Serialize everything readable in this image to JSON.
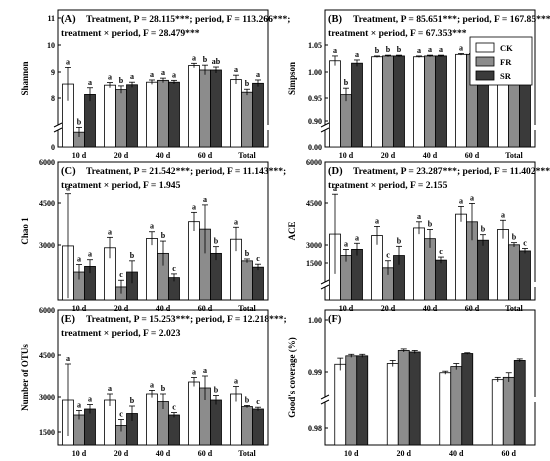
{
  "legend": [
    {
      "name": "CK",
      "color": "#ffffff"
    },
    {
      "name": "FR",
      "color": "#8c8c8c"
    },
    {
      "name": "SR",
      "color": "#3a3a3a"
    }
  ],
  "chart_data": [
    {
      "type": "bar",
      "panel": "(A)",
      "ylabel": "Shannon",
      "stat_line1": "Treatment, P = 28.115***; period, F = 113.266***;",
      "stat_line2": "treatment × period, F = 28.479***",
      "categories": [
        "10 d",
        "20 d",
        "40 d",
        "60 d",
        "Total"
      ],
      "yticks": [
        "0",
        "8",
        "9",
        "10",
        "11"
      ],
      "ylim": [
        7.3,
        11
      ],
      "axis_break": true,
      "series": [
        {
          "name": "CK",
          "values": [
            9.0,
            8.97,
            9.05,
            9.5,
            9.12
          ],
          "errors": [
            0.45,
            0.07,
            0.06,
            0.06,
            0.12
          ],
          "labels": [
            "a",
            "a",
            "a",
            "a",
            "a"
          ]
        },
        {
          "name": "FR",
          "values": [
            7.7,
            8.85,
            9.1,
            9.38,
            8.78
          ],
          "errors": [
            0.13,
            0.1,
            0.06,
            0.13,
            0.08
          ],
          "labels": [
            "b",
            "b",
            "a",
            "b",
            "b"
          ]
        },
        {
          "name": "SR",
          "values": [
            8.72,
            8.98,
            9.05,
            9.38,
            9.02
          ],
          "errors": [
            0.18,
            0.07,
            0.05,
            0.08,
            0.09
          ],
          "labels": [
            "a",
            "a",
            "a",
            "ab",
            "a"
          ]
        }
      ]
    },
    {
      "type": "bar",
      "panel": "(B)",
      "ylabel": "Simpson",
      "stat_line1": "Treatment, P = 85.651***; period, F = 167.85***;",
      "stat_line2": "treatment × period, F = 67.353***",
      "categories": [
        "10 d",
        "20 d",
        "40 d",
        "60 d",
        "Total"
      ],
      "yticks": [
        "0.00",
        "0.90",
        "0.95",
        "1.00",
        "1.05"
      ],
      "ylim": [
        0.88,
        1.05
      ],
      "axis_break": true,
      "series": [
        {
          "name": "CK",
          "values": [
            0.987,
            0.992,
            0.992,
            0.995,
            0.991
          ],
          "errors": [
            0.006,
            0.001,
            0.001,
            0.001,
            0.003
          ],
          "labels": [
            "a",
            "b",
            "a",
            "a",
            "a"
          ]
        },
        {
          "name": "FR",
          "values": [
            0.945,
            0.993,
            0.993,
            0.995,
            0.983
          ],
          "errors": [
            0.008,
            0.001,
            0.001,
            0.001,
            0.004
          ],
          "labels": [
            "b",
            "b",
            "a",
            "a",
            "b"
          ]
        },
        {
          "name": "SR",
          "values": [
            0.984,
            0.993,
            0.993,
            0.995,
            0.991
          ],
          "errors": [
            0.004,
            0.001,
            0.001,
            0.001,
            0.002
          ],
          "labels": [
            "a",
            "b",
            "a",
            "a",
            "a"
          ]
        }
      ]
    },
    {
      "type": "bar",
      "panel": "(C)",
      "ylabel": "Chao 1",
      "stat_line1": "Treatment, P = 21.542***; period, F = 11.143***;",
      "stat_line2": "treatment × period, F = 1.945",
      "categories": [
        "10 d",
        "20 d",
        "40 d",
        "60 d",
        "Total"
      ],
      "yticks": [
        "3000",
        "4500",
        "6000"
      ],
      "ylim": [
        2300,
        6000
      ],
      "axis_break": false,
      "series": [
        {
          "name": "CK",
          "values": [
            3750,
            3700,
            3950,
            4400,
            3930
          ],
          "errors": [
            1400,
            280,
            180,
            250,
            320
          ],
          "labels": [
            "a",
            "a",
            "a",
            "a",
            "a"
          ]
        },
        {
          "name": "FR",
          "values": [
            3050,
            2650,
            3550,
            4200,
            3350
          ],
          "errors": [
            200,
            180,
            330,
            650,
            50
          ],
          "labels": [
            "a",
            "c",
            "b",
            "a",
            "b"
          ]
        },
        {
          "name": "SR",
          "values": [
            3200,
            3050,
            2900,
            3550,
            3180
          ],
          "errors": [
            180,
            300,
            100,
            180,
            80
          ],
          "labels": [
            "a",
            "b",
            "c",
            "b",
            "c"
          ]
        }
      ]
    },
    {
      "type": "bar",
      "panel": "(D)",
      "ylabel": "ACE",
      "stat_line1": "Treatment, P = 23.287***; period, F = 11.402***;",
      "stat_line2": "treatment × period, F = 2.155",
      "categories": [
        "10 d",
        "20 d",
        "40 d",
        "60 d",
        "Total"
      ],
      "yticks": [
        "1500",
        "3000",
        "4500",
        "6000"
      ],
      "ylim": [
        1500,
        6000
      ],
      "axis_break": true,
      "series": [
        {
          "name": "CK",
          "values": [
            3650,
            3600,
            3850,
            4300,
            3800
          ],
          "errors": [
            1300,
            300,
            200,
            250,
            300
          ],
          "labels": [
            "a",
            "a",
            "a",
            "a",
            "a"
          ]
        },
        {
          "name": "FR",
          "values": [
            2950,
            2550,
            3500,
            4050,
            3300
          ],
          "errors": [
            200,
            230,
            300,
            600,
            70
          ],
          "labels": [
            "a",
            "c",
            "b",
            "a",
            "b"
          ]
        },
        {
          "name": "SR",
          "values": [
            3150,
            2950,
            2800,
            3450,
            3100
          ],
          "errors": [
            200,
            300,
            100,
            180,
            80
          ],
          "labels": [
            "a",
            "b",
            "c",
            "b",
            "c"
          ]
        }
      ]
    },
    {
      "type": "bar",
      "panel": "(E)",
      "ylabel": "Number of OTUs",
      "stat_line1": "Treatment, P = 15.253***; period, F = 12.218***;",
      "stat_line2": "treatment × period, F = 2.023",
      "categories": [
        "10 d",
        "20 d",
        "40 d",
        "60 d",
        "Total"
      ],
      "yticks": [
        "1500",
        "3000",
        "4500",
        "6000"
      ],
      "ylim": [
        1500,
        6000
      ],
      "axis_break": false,
      "series": [
        {
          "name": "CK",
          "values": [
            3000,
            3000,
            3200,
            3600,
            3200
          ],
          "errors": [
            1200,
            200,
            120,
            150,
            250
          ],
          "labels": [
            "a",
            "a",
            "a",
            "a",
            "a"
          ]
        },
        {
          "name": "FR",
          "values": [
            2500,
            2150,
            2950,
            3400,
            2780
          ],
          "errors": [
            150,
            200,
            250,
            400,
            40
          ],
          "labels": [
            "a",
            "c",
            "b",
            "a",
            "b"
          ]
        },
        {
          "name": "SR",
          "values": [
            2700,
            2550,
            2500,
            3000,
            2700
          ],
          "errors": [
            150,
            250,
            80,
            150,
            60
          ],
          "labels": [
            "a",
            "b",
            "c",
            "b",
            "c"
          ]
        }
      ]
    },
    {
      "type": "bar",
      "panel": "(F)",
      "ylabel": "Good's coverage (%)",
      "stat_line1": "",
      "stat_line2": "",
      "categories": [
        "10 d",
        "20 d",
        "40 d",
        "60 d"
      ],
      "yticks": [
        "0.98",
        "0.99",
        "1.00"
      ],
      "ylim": [
        0.9805,
        0.9965
      ],
      "axis_break": true,
      "series": [
        {
          "name": "CK",
          "values": [
            0.991,
            0.9911,
            0.9899,
            0.989
          ],
          "errors": [
            0.0008,
            0.0004,
            0.0002,
            0.0003
          ],
          "labels": [
            "",
            "",
            "",
            ""
          ]
        },
        {
          "name": "FR",
          "values": [
            0.9921,
            0.9928,
            0.9907,
            0.9893
          ],
          "errors": [
            0.0002,
            0.0002,
            0.0004,
            0.0006
          ],
          "labels": [
            "",
            "",
            "",
            ""
          ]
        },
        {
          "name": "SR",
          "values": [
            0.9921,
            0.9926,
            0.9924,
            0.9915
          ],
          "errors": [
            0.0002,
            0.0002,
            0.0001,
            0.0002
          ],
          "labels": [
            "",
            "",
            "",
            ""
          ]
        }
      ]
    }
  ]
}
